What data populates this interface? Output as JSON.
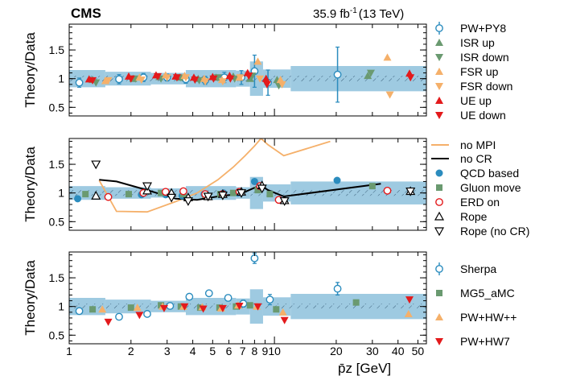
{
  "header": {
    "experiment": "CMS",
    "lumi_value": "35.9 fb",
    "lumi_exp": "-1",
    "lumi_energy": "(13 TeV)"
  },
  "colors": {
    "band": "#9ecae1",
    "hatch": "#3a5f7a",
    "pw_py8": "#2b8cbe",
    "isr": "#6a9a70",
    "fsr": "#f5b06a",
    "ue": "#e31a1c",
    "qcd": "#2b8cbe",
    "gluon": "#6a9a70",
    "erd": "#e31a1c",
    "nompi": "#f5b06a",
    "nocr": "#000000",
    "rope": "#000000",
    "sherpa": "#2b8cbe",
    "mg5": "#6a9a70",
    "hwpp": "#f5b06a",
    "hw7": "#e31a1c"
  },
  "chart_data": [
    {
      "type": "scatter",
      "panel": "top",
      "ylabel": "Theory/Data",
      "xlabel": "p̄z [GeV]",
      "xscale": "log",
      "xlim": [
        1,
        55
      ],
      "ylim": [
        0.35,
        1.95
      ],
      "yticks": [
        0.5,
        1,
        1.5
      ],
      "ytick_labels": [
        "0.5",
        "1",
        "1.5"
      ],
      "band": [
        [
          1,
          1.5,
          0.85,
          1.15
        ],
        [
          1.5,
          2.5,
          0.88,
          1.12
        ],
        [
          2.5,
          3.7,
          0.9,
          1.1
        ],
        [
          3.7,
          6.5,
          0.85,
          1.15
        ],
        [
          6.5,
          7.6,
          0.86,
          1.14
        ],
        [
          7.6,
          8.8,
          0.7,
          1.3
        ],
        [
          8.8,
          12,
          0.84,
          1.16
        ],
        [
          12,
          55,
          0.78,
          1.22
        ]
      ],
      "series": [
        {
          "name": "PW+PY8",
          "marker": "circle-open",
          "color": "#2b8cbe",
          "x": [
            1.12,
            1.75,
            2.3,
            3,
            3.7,
            4.6,
            5.7,
            6.9,
            8.0,
            9.3,
            20.3
          ],
          "y": [
            0.93,
            0.99,
            1.02,
            1.02,
            0.99,
            0.97,
            1.02,
            1.02,
            1.13,
            0.93,
            1.07
          ],
          "err": [
            0.08,
            0.08,
            0.07,
            0.06,
            0.07,
            0.07,
            0.09,
            0.12,
            0.28,
            0.22,
            0.48
          ]
        },
        {
          "name": "ISR up",
          "marker": "tri-up",
          "color": "#6a9a70",
          "x": [
            1.3,
            2.05,
            2.75,
            3.45,
            4.25,
            5.2,
            6.3,
            7.6,
            10.3,
            28.5
          ],
          "y": [
            0.98,
            1.0,
            1.03,
            1.02,
            1.0,
            1.02,
            1.04,
            1.0,
            0.98,
            1.05
          ]
        },
        {
          "name": "ISR down",
          "marker": "tri-down",
          "color": "#6a9a70",
          "x": [
            1.35,
            2.1,
            2.8,
            3.5,
            4.3,
            5.3,
            6.4,
            7.8,
            10.5,
            29.5
          ],
          "y": [
            0.93,
            1.0,
            1.0,
            1.02,
            0.97,
            1.02,
            1.0,
            1.05,
            0.88,
            1.1
          ]
        },
        {
          "name": "FSR up",
          "marker": "tri-up",
          "color": "#f5b06a",
          "x": [
            1.5,
            2.2,
            2.95,
            3.65,
            4.55,
            5.55,
            6.75,
            8.3,
            10.7,
            35.5
          ],
          "y": [
            0.96,
            1.02,
            1.06,
            1.05,
            1.0,
            0.98,
            1.02,
            1.3,
            0.98,
            1.37
          ]
        },
        {
          "name": "FSR down",
          "marker": "tri-down",
          "color": "#f5b06a",
          "x": [
            1.55,
            2.25,
            3.0,
            3.7,
            4.6,
            5.6,
            6.8,
            8.5,
            10.9,
            36.5
          ],
          "y": [
            0.97,
            0.98,
            1.02,
            1.02,
            0.95,
            0.95,
            1.02,
            1.0,
            0.9,
            0.72
          ]
        },
        {
          "name": "UE up",
          "marker": "tri-up",
          "color": "#e31a1c",
          "x": [
            1.25,
            1.95,
            2.65,
            3.3,
            4.05,
            5.0,
            6.05,
            7.4,
            9.1,
            45.5
          ],
          "y": [
            0.99,
            1.04,
            1.06,
            1.04,
            1.02,
            1.03,
            1.05,
            1.1,
            1.0,
            1.09
          ]
        },
        {
          "name": "UE down",
          "marker": "tri-down",
          "color": "#e31a1c",
          "x": [
            1.3,
            2.0,
            2.7,
            3.35,
            4.1,
            5.05,
            6.1,
            7.5,
            9.2,
            46.0
          ],
          "y": [
            0.97,
            1.0,
            1.04,
            1.02,
            0.98,
            1.0,
            1.0,
            1.05,
            0.9,
            1.02
          ]
        }
      ]
    },
    {
      "type": "line+scatter",
      "panel": "middle",
      "ylabel": "Theory/Data",
      "xscale": "log",
      "xlim": [
        1,
        55
      ],
      "ylim": [
        0.35,
        1.95
      ],
      "yticks": [
        0.5,
        1,
        1.5
      ],
      "ytick_labels": [
        "0.5",
        "1",
        "1.5"
      ],
      "band": [
        [
          1,
          1.5,
          0.88,
          1.12
        ],
        [
          1.5,
          2.5,
          0.9,
          1.1
        ],
        [
          2.5,
          3.7,
          0.92,
          1.08
        ],
        [
          3.7,
          6.5,
          0.88,
          1.12
        ],
        [
          6.5,
          7.6,
          0.9,
          1.1
        ],
        [
          7.6,
          8.8,
          0.72,
          1.28
        ],
        [
          8.8,
          12,
          0.85,
          1.15
        ],
        [
          12,
          55,
          0.8,
          1.2
        ]
      ],
      "series": [
        {
          "name": "no MPI",
          "style": "line",
          "color": "#f5b06a",
          "x": [
            1.4,
            1.7,
            2.4,
            3.3,
            4.2,
            5.3,
            6.3,
            7.2,
            8.0,
            8.6,
            9.3,
            11.1,
            18.7
          ],
          "y": [
            1.22,
            0.68,
            0.67,
            0.85,
            1.0,
            1.23,
            1.45,
            1.65,
            1.82,
            1.95,
            1.84,
            1.65,
            1.9
          ]
        },
        {
          "name": "no CR",
          "style": "line",
          "color": "#000000",
          "x": [
            1.4,
            1.7,
            2.4,
            3.3,
            4.2,
            5.3,
            6.3,
            7.2,
            8.1,
            8.6,
            9.3,
            11.1,
            33.0
          ],
          "y": [
            1.23,
            1.2,
            1.05,
            0.9,
            0.88,
            0.94,
            0.97,
            1.02,
            1.1,
            1.13,
            1.05,
            0.94,
            1.16
          ]
        },
        {
          "name": "QCD based",
          "marker": "circle-filled",
          "color": "#2b8cbe",
          "x": [
            1.1,
            2.25,
            2.95,
            3.55,
            4.55,
            5.65,
            6.65,
            8.0,
            20.2
          ],
          "y": [
            0.9,
            0.97,
            0.97,
            0.95,
            0.98,
            1.0,
            1.0,
            1.2,
            1.22
          ]
        },
        {
          "name": "Gluon move",
          "marker": "square",
          "color": "#6a9a70",
          "x": [
            1.2,
            1.95,
            2.8,
            3.6,
            4.6,
            5.45,
            6.3,
            8.3,
            9.5,
            30.0
          ],
          "y": [
            0.98,
            0.98,
            1.0,
            0.98,
            0.97,
            0.98,
            1.0,
            1.05,
            0.98,
            1.12
          ]
        },
        {
          "name": "ERD on",
          "marker": "circle-open",
          "color": "#e31a1c",
          "x": [
            1.55,
            2.3,
            2.95,
            3.6,
            4.6,
            5.6,
            6.75,
            8.5,
            10.5,
            35.5
          ],
          "y": [
            0.93,
            1.0,
            1.02,
            1.03,
            0.98,
            0.98,
            1.02,
            1.12,
            0.88,
            1.04
          ]
        },
        {
          "name": "Rope",
          "marker": "tri-up-open",
          "color": "#000000",
          "x": [
            1.35,
            2.4,
            3.15,
            3.8,
            4.75,
            5.6,
            6.9,
            8.7,
            11.2,
            46.0
          ],
          "y": [
            0.95,
            1.04,
            1.0,
            0.92,
            0.94,
            0.98,
            1.02,
            1.13,
            0.87,
            1.03
          ]
        },
        {
          "name": "Rope (no CR)",
          "marker": "tri-down-open",
          "color": "#000000",
          "x": [
            1.35,
            2.4,
            3.15,
            3.8,
            4.75,
            5.6,
            6.9,
            8.7,
            11.2,
            46.0
          ],
          "y": [
            1.5,
            1.12,
            0.92,
            0.86,
            0.94,
            0.96,
            1.0,
            1.08,
            0.86,
            1.03
          ]
        }
      ]
    },
    {
      "type": "scatter",
      "panel": "bottom",
      "ylabel": "Theory/Data",
      "xlabel": "p̄z [GeV]",
      "xscale": "log",
      "xlim": [
        1,
        55
      ],
      "ylim": [
        0.35,
        1.95
      ],
      "yticks": [
        0.5,
        1,
        1.5
      ],
      "ytick_labels": [
        "0.5",
        "1",
        "1.5"
      ],
      "xticks": [
        1,
        2,
        3,
        4,
        5,
        6,
        7,
        8,
        9,
        10,
        20,
        30,
        40,
        50
      ],
      "xtick_labels": [
        "1",
        "2",
        "3",
        "4",
        "5",
        "6",
        "7",
        "8",
        "9",
        "10",
        "20",
        "30",
        "40",
        "50"
      ],
      "band": [
        [
          1,
          1.5,
          0.85,
          1.15
        ],
        [
          1.5,
          2.5,
          0.88,
          1.12
        ],
        [
          2.5,
          3.7,
          0.9,
          1.1
        ],
        [
          3.7,
          6.5,
          0.85,
          1.15
        ],
        [
          6.5,
          7.6,
          0.86,
          1.14
        ],
        [
          7.6,
          8.8,
          0.7,
          1.3
        ],
        [
          8.8,
          12,
          0.84,
          1.16
        ],
        [
          12,
          55,
          0.78,
          1.22
        ]
      ],
      "series": [
        {
          "name": "Sherpa",
          "marker": "circle-open",
          "color": "#2b8cbe",
          "x": [
            1.12,
            1.75,
            2.4,
            3.1,
            3.85,
            4.8,
            5.95,
            7.05,
            8.0,
            9.5,
            20.3
          ],
          "y": [
            0.92,
            0.82,
            0.87,
            1.01,
            1.17,
            1.23,
            1.15,
            1.05,
            1.84,
            1.12,
            1.31
          ],
          "err": [
            0.04,
            0.04,
            0.04,
            0.04,
            0.04,
            0.04,
            0.05,
            0.06,
            0.09,
            0.09,
            0.11
          ]
        },
        {
          "name": "MG5_aMC",
          "marker": "square",
          "color": "#6a9a70",
          "x": [
            1.3,
            2.0,
            2.8,
            3.5,
            4.35,
            5.4,
            6.5,
            7.6,
            10.2,
            25.0
          ],
          "y": [
            0.95,
            0.98,
            1.02,
            1.0,
            0.98,
            0.98,
            1.0,
            1.02,
            0.95,
            1.07
          ]
        },
        {
          "name": "PW+HW++",
          "marker": "tri-up",
          "color": "#f5b06a",
          "x": [
            1.45,
            2.15,
            2.85,
            3.6,
            4.45,
            5.5,
            6.65,
            8.2,
            11.0,
            45.0
          ],
          "y": [
            0.95,
            0.98,
            1.0,
            1.0,
            0.99,
            0.97,
            1.02,
            1.0,
            0.9,
            0.87
          ]
        },
        {
          "name": "PW+HW7",
          "marker": "tri-down",
          "color": "#e31a1c",
          "x": [
            1.55,
            2.2,
            2.9,
            3.65,
            4.5,
            5.6,
            6.75,
            8.3,
            11.2,
            45.5
          ],
          "y": [
            0.73,
            0.85,
            0.97,
            1.0,
            0.96,
            0.97,
            1.01,
            1.0,
            0.76,
            1.12
          ]
        }
      ]
    }
  ]
}
